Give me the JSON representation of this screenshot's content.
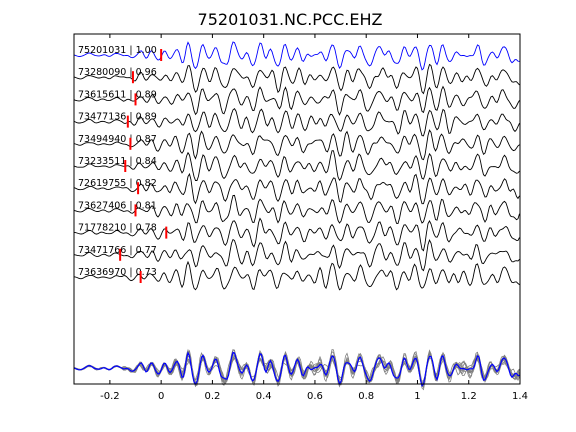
{
  "chart_data": {
    "type": "line",
    "title": "75201031.NC.PCC.EHZ",
    "xlabel": "",
    "ylabel": "",
    "xlim": [
      -0.34,
      1.4
    ],
    "x_ticks": [
      "-0.2",
      "0",
      "0.2",
      "0.4",
      "0.6",
      "0.8",
      "1",
      "1.2",
      "1.4"
    ],
    "x_tick_values": [
      -0.2,
      0,
      0.2,
      0.4,
      0.6,
      0.8,
      1.0,
      1.2,
      1.4
    ],
    "grid": false,
    "colors": {
      "reference": "#0000ff",
      "trace": "#000000",
      "pick": "#ff0000",
      "stack": "#808080"
    },
    "series": [
      {
        "name": "75201031 | 1.00",
        "event_id": "75201031",
        "cc": 1.0,
        "pick_time": 0.0,
        "color": "#0000ff",
        "seed": 1
      },
      {
        "name": "73280090 | 0.96",
        "event_id": "73280090",
        "cc": 0.96,
        "pick_time": -0.11,
        "color": "#000000",
        "seed": 2
      },
      {
        "name": "73615611 | 0.89",
        "event_id": "73615611",
        "cc": 0.89,
        "pick_time": -0.1,
        "color": "#000000",
        "seed": 3
      },
      {
        "name": "73477136 | 0.89",
        "event_id": "73477136",
        "cc": 0.89,
        "pick_time": -0.13,
        "color": "#000000",
        "seed": 4
      },
      {
        "name": "73494940 | 0.87",
        "event_id": "73494940",
        "cc": 0.87,
        "pick_time": -0.12,
        "color": "#000000",
        "seed": 5
      },
      {
        "name": "73233511 | 0.84",
        "event_id": "73233511",
        "cc": 0.84,
        "pick_time": -0.14,
        "color": "#000000",
        "seed": 6
      },
      {
        "name": "72619755 | 0.82",
        "event_id": "72619755",
        "cc": 0.82,
        "pick_time": -0.09,
        "color": "#000000",
        "seed": 7
      },
      {
        "name": "73627406 | 0.81",
        "event_id": "73627406",
        "cc": 0.81,
        "pick_time": -0.1,
        "color": "#000000",
        "seed": 8
      },
      {
        "name": "71778210 | 0.78",
        "event_id": "71778210",
        "cc": 0.78,
        "pick_time": 0.02,
        "color": "#000000",
        "seed": 9
      },
      {
        "name": "73471766 | 0.77",
        "event_id": "73471766",
        "cc": 0.77,
        "pick_time": -0.16,
        "color": "#000000",
        "seed": 10
      },
      {
        "name": "73636970 | 0.73",
        "event_id": "73636970",
        "cc": 0.73,
        "pick_time": -0.08,
        "color": "#000000",
        "seed": 11
      }
    ],
    "overlay_stack": {
      "description_colors": [
        "#808080",
        "#0000ff"
      ]
    }
  }
}
